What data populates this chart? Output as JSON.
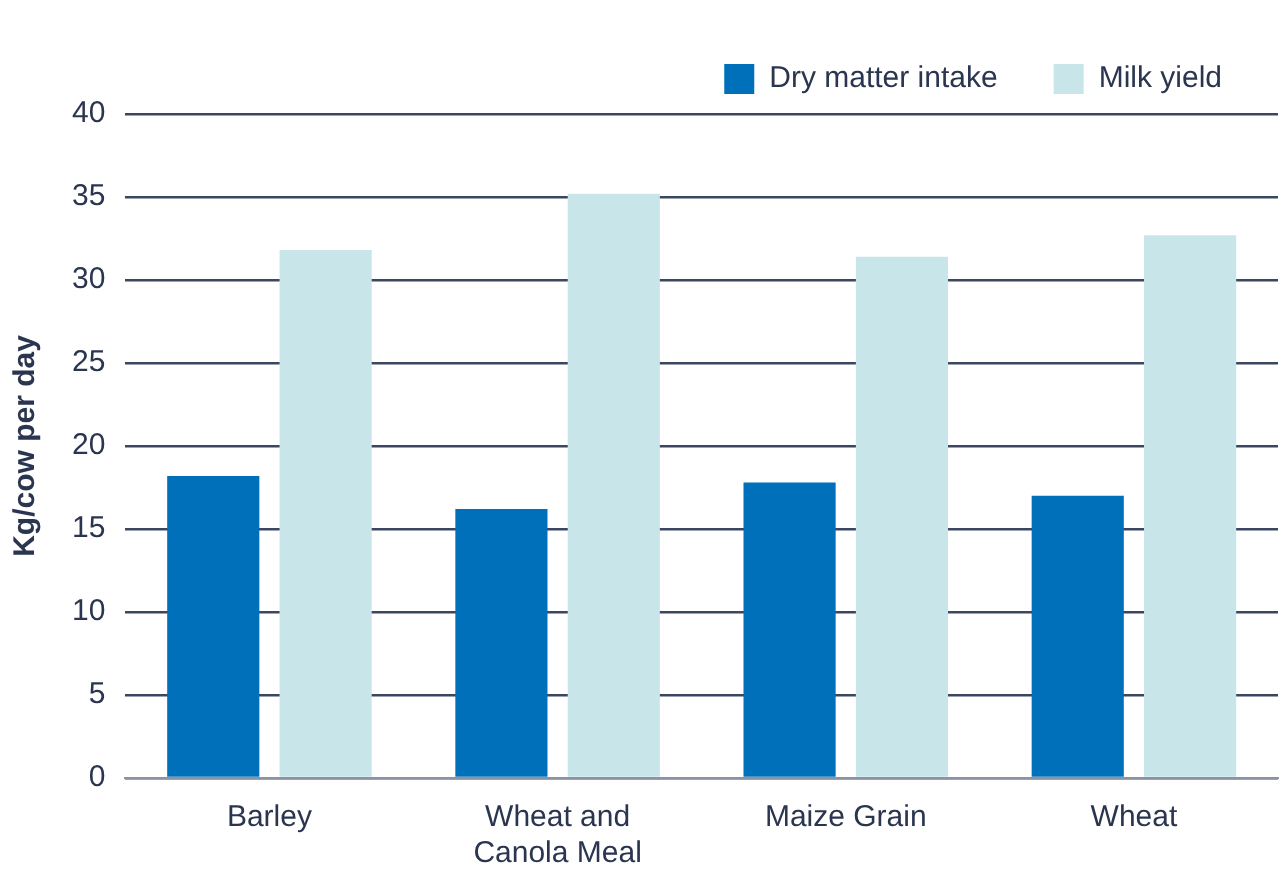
{
  "chart_data": {
    "type": "bar",
    "ylabel": "Kg/cow per day",
    "categories": [
      "Barley",
      "Wheat and Canola Meal",
      "Maize Grain",
      "Wheat"
    ],
    "series": [
      {
        "name": "Dry matter intake",
        "color": "#0070ba",
        "values": [
          18.2,
          16.2,
          17.8,
          17.0
        ]
      },
      {
        "name": "Milk yield",
        "color": "#c8e6ea",
        "values": [
          31.8,
          35.2,
          31.4,
          32.7
        ]
      }
    ],
    "ylim": [
      0,
      40
    ],
    "yticks": [
      0,
      5,
      10,
      15,
      20,
      25,
      30,
      35,
      40
    ],
    "grid": "y",
    "legend": "top right"
  }
}
